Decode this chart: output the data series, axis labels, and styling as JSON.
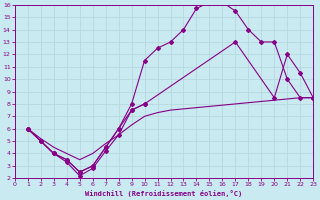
{
  "xlabel": "Windchill (Refroidissement éolien,°C)",
  "bg_color": "#c8eaf0",
  "line_color": "#880088",
  "grid_color": "#b8d8e0",
  "xlim": [
    0,
    23
  ],
  "ylim": [
    2,
    16
  ],
  "xticks": [
    0,
    1,
    2,
    3,
    4,
    5,
    6,
    7,
    8,
    9,
    10,
    11,
    12,
    13,
    14,
    15,
    16,
    17,
    18,
    19,
    20,
    21,
    22,
    23
  ],
  "yticks": [
    2,
    3,
    4,
    5,
    6,
    7,
    8,
    9,
    10,
    11,
    12,
    13,
    14,
    15,
    16
  ],
  "curve_big_x": [
    1,
    2,
    3,
    4,
    5,
    6,
    7,
    8,
    9,
    10,
    11,
    12,
    13,
    14,
    15,
    16,
    17,
    18,
    19,
    20,
    21,
    22,
    23
  ],
  "curve_big_y": [
    6,
    5,
    4,
    3.5,
    2.5,
    3,
    4.5,
    6,
    8,
    11.5,
    12.5,
    13,
    14,
    15.7,
    16.2,
    16.2,
    15.5,
    14,
    13,
    13,
    10,
    8.5,
    8.5
  ],
  "curve_mid_x": [
    1,
    2,
    3,
    4,
    5,
    6,
    7,
    8,
    9,
    10,
    17,
    20,
    21,
    22,
    23
  ],
  "curve_mid_y": [
    6,
    5,
    4,
    3.5,
    2.5,
    3,
    4.5,
    6,
    7.5,
    8,
    13,
    8.5,
    12,
    10.5,
    8.5
  ],
  "curve_flat_x": [
    1,
    2,
    3,
    4,
    5,
    6,
    7,
    8,
    9,
    10,
    11,
    12,
    13,
    14,
    15,
    16,
    17,
    18,
    19,
    20,
    21,
    22,
    23
  ],
  "curve_flat_y": [
    6,
    5.2,
    4.5,
    4.0,
    3.5,
    4.0,
    4.8,
    5.5,
    6.3,
    7.0,
    7.3,
    7.5,
    7.6,
    7.7,
    7.8,
    7.9,
    8.0,
    8.1,
    8.2,
    8.3,
    8.4,
    8.5,
    8.5
  ],
  "curve_dip_x": [
    1,
    2,
    3,
    4,
    5,
    6,
    7,
    8,
    9,
    10
  ],
  "curve_dip_y": [
    6,
    5,
    4,
    3.3,
    2.2,
    2.8,
    4.2,
    5.5,
    7.5,
    8
  ]
}
